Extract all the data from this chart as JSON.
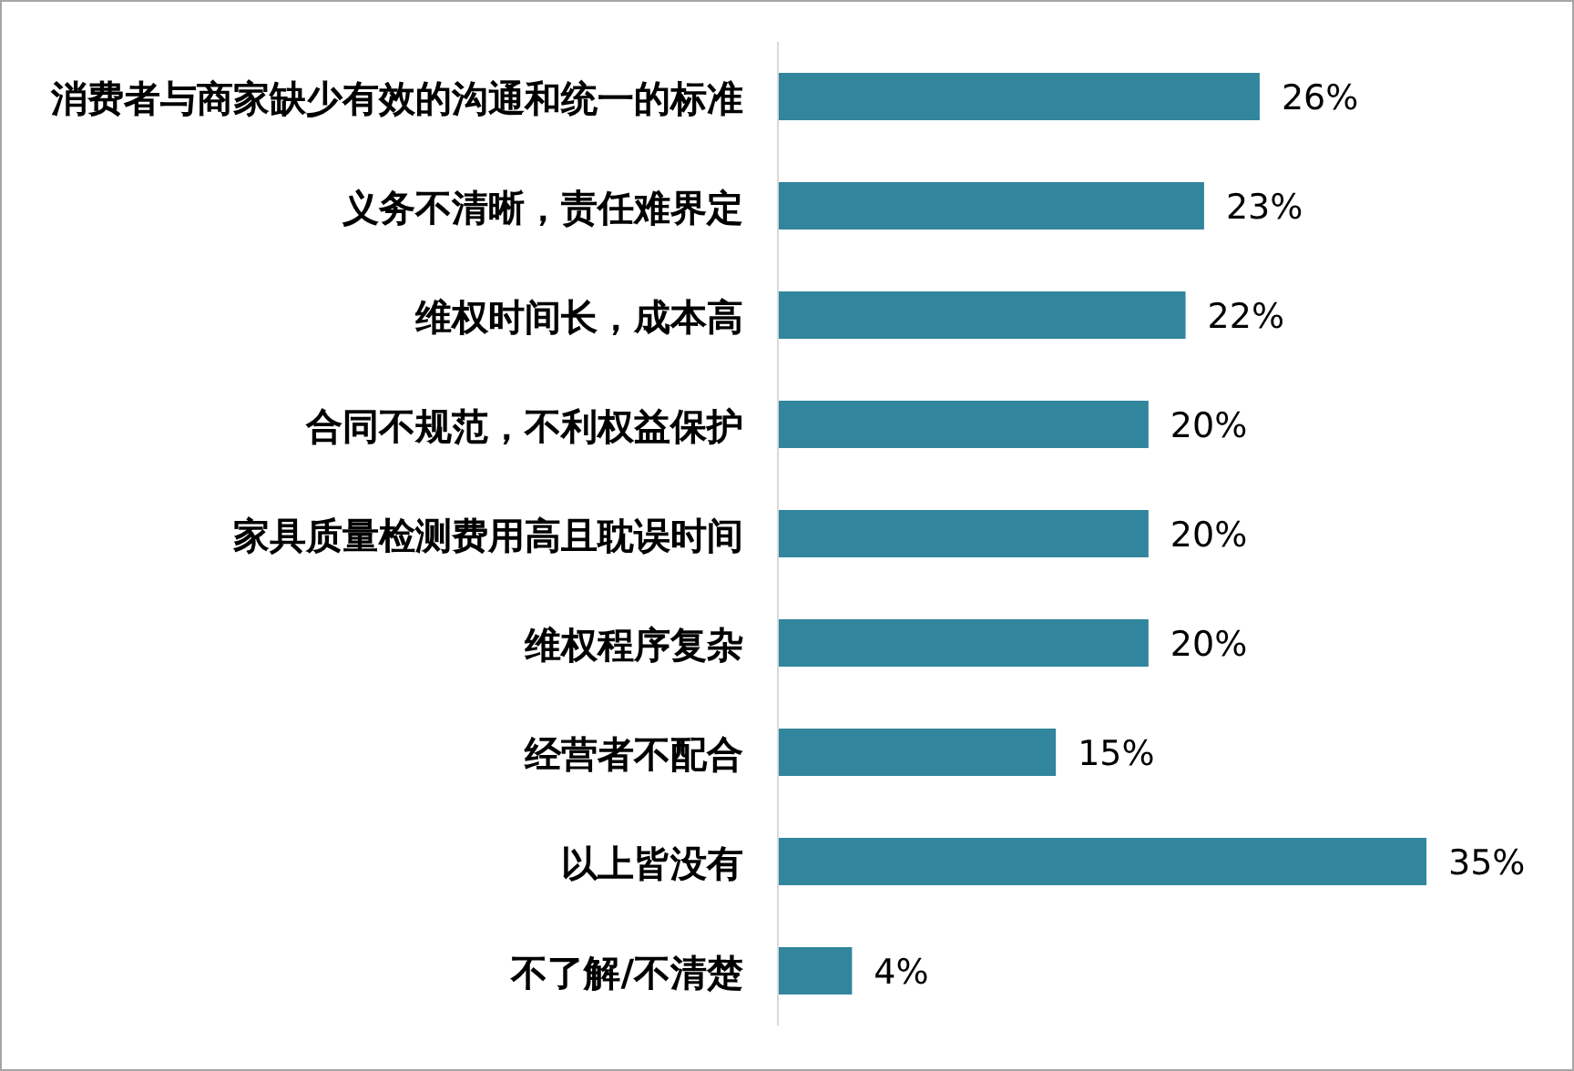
{
  "chart_data": {
    "type": "bar",
    "orientation": "horizontal",
    "xlim": [
      0,
      35
    ],
    "categories": [
      "消费者与商家缺少有效的沟通和统一的标准",
      "义务不清晰，责任难界定",
      "维权时间长，成本高",
      "合同不规范，不利权益保护",
      "家具质量检测费用高且耽误时间",
      "维权程序复杂",
      "经营者不配合",
      "以上皆没有",
      "不了解/不清楚"
    ],
    "values": [
      26,
      23,
      22,
      20,
      20,
      20,
      15,
      35,
      4
    ],
    "value_labels": [
      "26%",
      "23%",
      "22%",
      "20%",
      "20%",
      "20%",
      "15%",
      "35%",
      "4%"
    ],
    "color": "#31859c"
  }
}
